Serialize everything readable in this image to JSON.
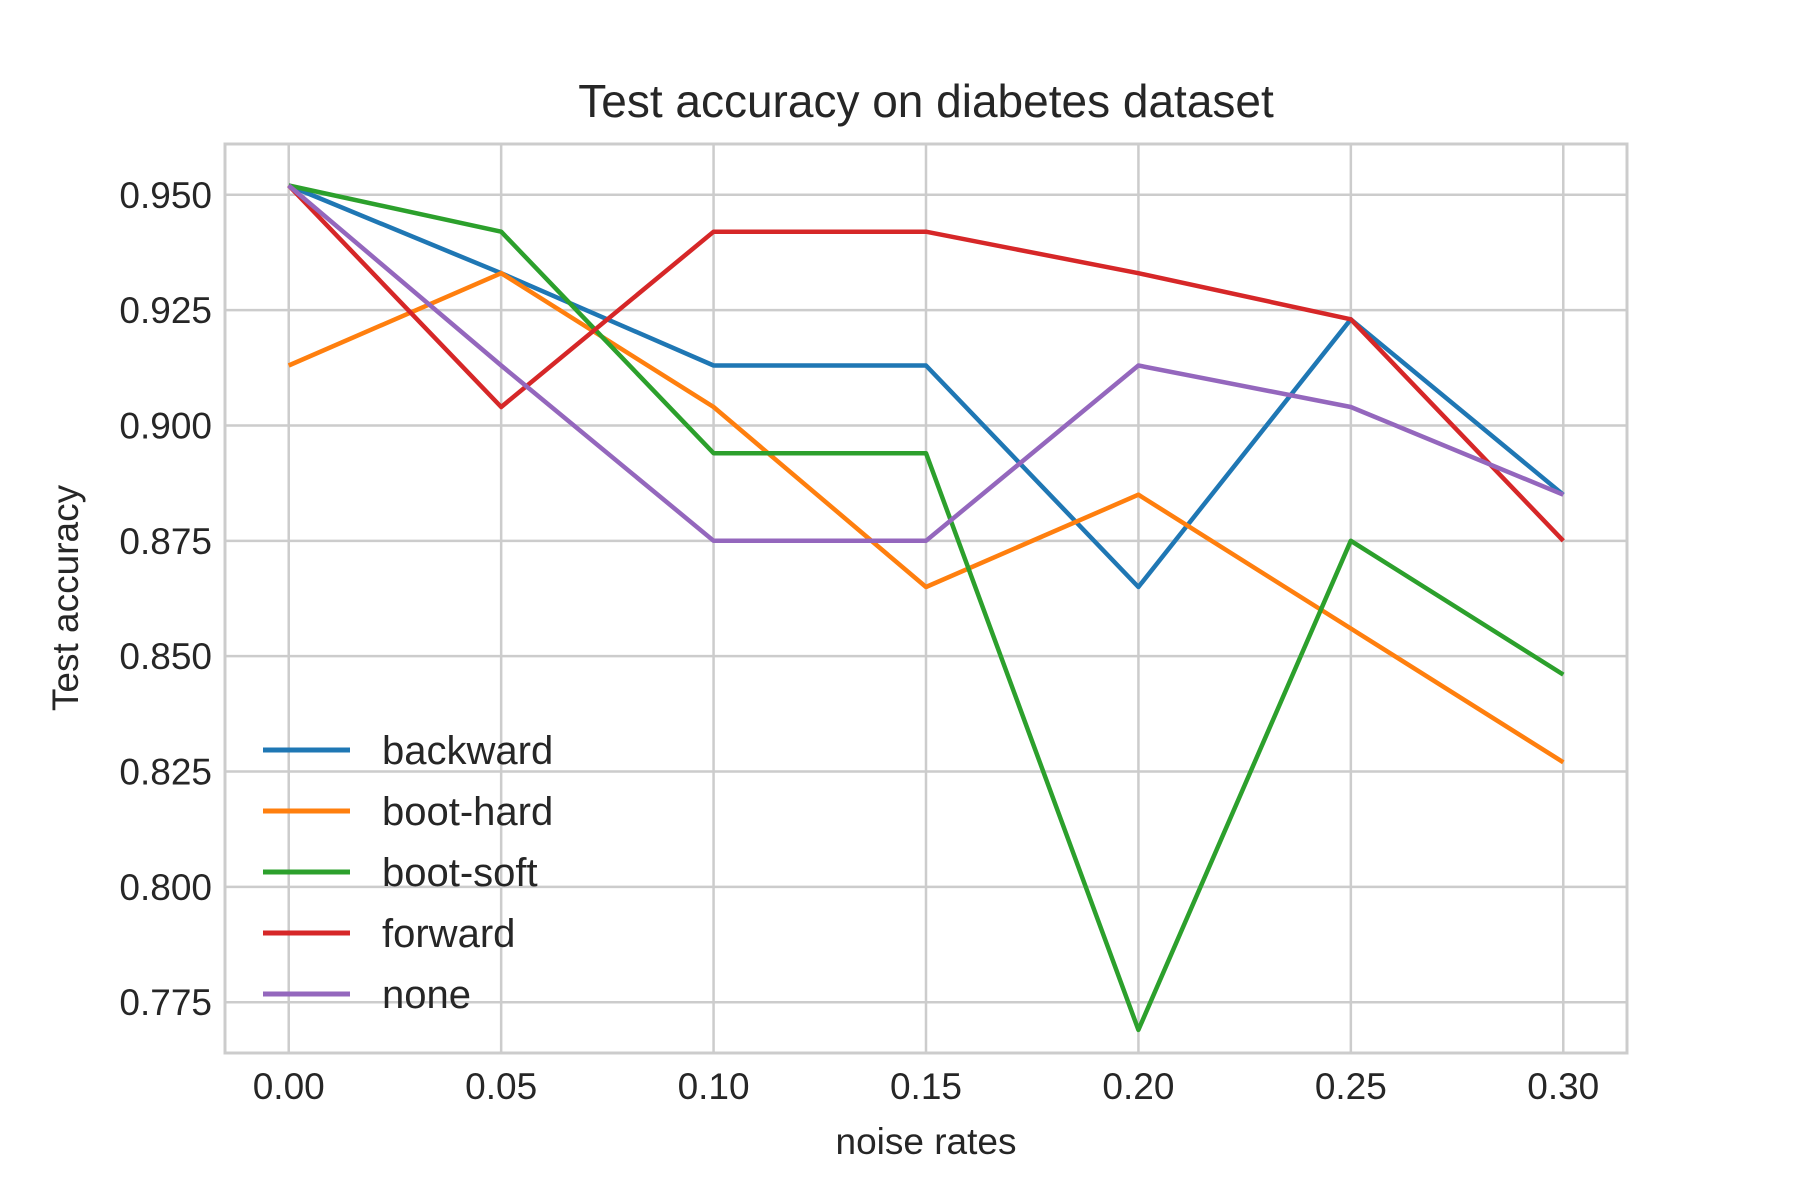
{
  "chart_data": {
    "type": "line",
    "title": "Test accuracy on diabetes dataset",
    "xlabel": "noise rates",
    "ylabel": "Test accuracy",
    "x": [
      0.0,
      0.05,
      0.1,
      0.15,
      0.2,
      0.25,
      0.3
    ],
    "x_tick_labels": [
      "0.00",
      "0.05",
      "0.10",
      "0.15",
      "0.20",
      "0.25",
      "0.30"
    ],
    "y_ticks": [
      0.775,
      0.8,
      0.825,
      0.85,
      0.875,
      0.9,
      0.925,
      0.95
    ],
    "y_tick_labels": [
      "0.775",
      "0.800",
      "0.825",
      "0.850",
      "0.875",
      "0.900",
      "0.925",
      "0.950"
    ],
    "xlim": [
      -0.015,
      0.315
    ],
    "ylim": [
      0.764,
      0.961
    ],
    "grid": true,
    "legend_position": "lower-left",
    "series": [
      {
        "name": "backward",
        "color": "#1f77b4",
        "values": [
          0.952,
          0.933,
          0.913,
          0.913,
          0.865,
          0.923,
          0.885
        ]
      },
      {
        "name": "boot-hard",
        "color": "#ff7f0e",
        "values": [
          0.913,
          0.933,
          0.904,
          0.865,
          0.885,
          0.856,
          0.827
        ]
      },
      {
        "name": "boot-soft",
        "color": "#2ca02c",
        "values": [
          0.952,
          0.942,
          0.894,
          0.894,
          0.769,
          0.875,
          0.846
        ]
      },
      {
        "name": "forward",
        "color": "#d62728",
        "values": [
          0.952,
          0.904,
          0.942,
          0.942,
          0.933,
          0.923,
          0.875
        ]
      },
      {
        "name": "none",
        "color": "#9467bd",
        "values": [
          0.952,
          0.913,
          0.875,
          0.875,
          0.913,
          0.904,
          0.885
        ]
      }
    ]
  }
}
